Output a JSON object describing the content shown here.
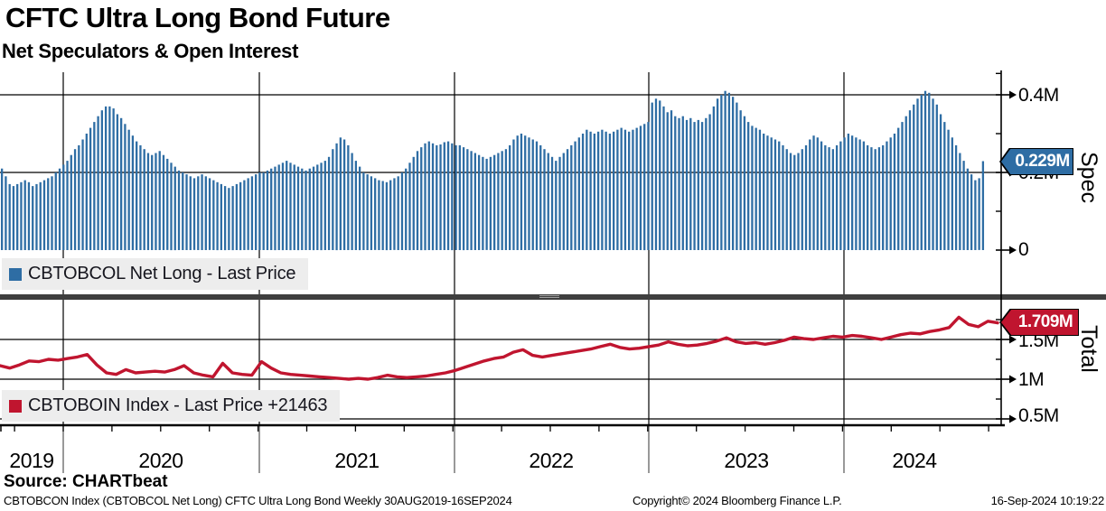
{
  "header": {
    "title": "CFTC Ultra Long Bond Future",
    "subtitle": "Net Speculators & Open Interest"
  },
  "top_panel": {
    "legend": "CBTOBCOL Net Long - Last Price",
    "axis_title": "Spec",
    "last_value_label": "0.229M",
    "series_color": "#2e6da4",
    "yticks": [
      {
        "label": "0.4M",
        "value": 0.4
      },
      {
        "label": "0.2M",
        "value": 0.2
      },
      {
        "label": "0",
        "value": 0
      }
    ],
    "minor_tick_values": [
      0.455,
      0.3,
      0.1
    ]
  },
  "bottom_panel": {
    "legend": "CBTOBOIN Index - Last Price +21463",
    "axis_title": "Total",
    "last_value_label": "1.709M",
    "series_color": "#c0152f",
    "yticks": [
      {
        "label": "1.5M",
        "value": 1.5
      },
      {
        "label": "1M",
        "value": 1.0
      },
      {
        "label": "0.5M",
        "value": 0.5
      }
    ],
    "minor_tick_values": [
      1.75,
      1.25,
      0.75
    ]
  },
  "x_axis": {
    "years": [
      "2019",
      "2020",
      "2021",
      "2022",
      "2023",
      "2024"
    ]
  },
  "footer": {
    "source": "Source: CHARTbeat",
    "left": "CBTOBCON Index (CBTOBCOL Net Long) CFTC Ultra Long Bond  Weekly 30AUG2019-16SEP2024",
    "center": "Copyright© 2024 Bloomberg Finance L.P.",
    "right": "16-Sep-2024 10:19:22"
  },
  "chart_data": [
    {
      "type": "bar",
      "name": "CBTOBCOL Net Long - Last Price",
      "title": "Net Speculators",
      "ylabel": "Spec",
      "x_range": [
        "30AUG2019",
        "16SEP2024"
      ],
      "frequency": "Weekly",
      "ylim": [
        0,
        0.46
      ],
      "grid": true,
      "unit": "M",
      "last_value": 0.229,
      "values": [
        0.21,
        0.19,
        0.17,
        0.165,
        0.17,
        0.175,
        0.18,
        0.175,
        0.165,
        0.17,
        0.175,
        0.18,
        0.185,
        0.19,
        0.2,
        0.21,
        0.22,
        0.23,
        0.245,
        0.26,
        0.27,
        0.285,
        0.3,
        0.315,
        0.33,
        0.345,
        0.36,
        0.37,
        0.37,
        0.365,
        0.35,
        0.34,
        0.325,
        0.31,
        0.295,
        0.28,
        0.27,
        0.26,
        0.25,
        0.245,
        0.25,
        0.255,
        0.245,
        0.235,
        0.225,
        0.215,
        0.205,
        0.2,
        0.195,
        0.19,
        0.185,
        0.19,
        0.195,
        0.19,
        0.185,
        0.18,
        0.175,
        0.17,
        0.165,
        0.16,
        0.165,
        0.17,
        0.175,
        0.18,
        0.185,
        0.19,
        0.195,
        0.2,
        0.2,
        0.205,
        0.21,
        0.215,
        0.22,
        0.225,
        0.23,
        0.225,
        0.22,
        0.215,
        0.21,
        0.205,
        0.21,
        0.215,
        0.22,
        0.225,
        0.23,
        0.24,
        0.26,
        0.275,
        0.29,
        0.285,
        0.27,
        0.25,
        0.23,
        0.215,
        0.2,
        0.195,
        0.19,
        0.185,
        0.18,
        0.178,
        0.175,
        0.18,
        0.185,
        0.19,
        0.2,
        0.21,
        0.225,
        0.24,
        0.255,
        0.265,
        0.275,
        0.28,
        0.275,
        0.27,
        0.272,
        0.278,
        0.28,
        0.275,
        0.27,
        0.27,
        0.265,
        0.26,
        0.255,
        0.25,
        0.245,
        0.24,
        0.235,
        0.24,
        0.245,
        0.25,
        0.255,
        0.26,
        0.27,
        0.285,
        0.295,
        0.3,
        0.295,
        0.29,
        0.285,
        0.28,
        0.27,
        0.26,
        0.25,
        0.24,
        0.23,
        0.24,
        0.25,
        0.26,
        0.27,
        0.28,
        0.29,
        0.3,
        0.31,
        0.305,
        0.3,
        0.305,
        0.31,
        0.305,
        0.3,
        0.305,
        0.31,
        0.315,
        0.31,
        0.305,
        0.31,
        0.315,
        0.32,
        0.325,
        0.33,
        0.38,
        0.39,
        0.385,
        0.37,
        0.355,
        0.36,
        0.345,
        0.34,
        0.345,
        0.335,
        0.34,
        0.33,
        0.335,
        0.33,
        0.34,
        0.35,
        0.37,
        0.39,
        0.4,
        0.41,
        0.405,
        0.395,
        0.38,
        0.36,
        0.345,
        0.33,
        0.32,
        0.315,
        0.31,
        0.3,
        0.295,
        0.29,
        0.285,
        0.28,
        0.27,
        0.26,
        0.25,
        0.245,
        0.25,
        0.26,
        0.27,
        0.285,
        0.295,
        0.29,
        0.28,
        0.27,
        0.265,
        0.26,
        0.27,
        0.28,
        0.29,
        0.3,
        0.295,
        0.29,
        0.285,
        0.28,
        0.27,
        0.265,
        0.26,
        0.265,
        0.27,
        0.28,
        0.29,
        0.3,
        0.315,
        0.33,
        0.345,
        0.36,
        0.375,
        0.39,
        0.4,
        0.41,
        0.405,
        0.39,
        0.375,
        0.35,
        0.33,
        0.31,
        0.29,
        0.27,
        0.25,
        0.23,
        0.21,
        0.195,
        0.18,
        0.185,
        0.229
      ]
    },
    {
      "type": "line",
      "name": "CBTOBOIN Index - Last Price",
      "title": "Open Interest",
      "ylabel": "Total",
      "x_range": [
        "30AUG2019",
        "16SEP2024"
      ],
      "frequency": "Weekly",
      "ylim": [
        0.43,
        2.0
      ],
      "grid": true,
      "unit": "M",
      "last_value": 1.709,
      "values": [
        1.17,
        1.14,
        1.18,
        1.23,
        1.22,
        1.25,
        1.24,
        1.26,
        1.28,
        1.31,
        1.18,
        1.08,
        1.06,
        1.12,
        1.08,
        1.09,
        1.1,
        1.09,
        1.12,
        1.17,
        1.08,
        1.05,
        1.03,
        1.2,
        1.08,
        1.06,
        1.05,
        1.22,
        1.14,
        1.08,
        1.06,
        1.05,
        1.04,
        1.03,
        1.02,
        1.01,
        1.0,
        1.01,
        1.0,
        1.02,
        1.05,
        1.03,
        1.02,
        1.03,
        1.04,
        1.06,
        1.08,
        1.11,
        1.15,
        1.19,
        1.23,
        1.26,
        1.28,
        1.34,
        1.37,
        1.3,
        1.28,
        1.3,
        1.32,
        1.34,
        1.36,
        1.38,
        1.41,
        1.44,
        1.4,
        1.38,
        1.39,
        1.41,
        1.43,
        1.47,
        1.44,
        1.42,
        1.43,
        1.45,
        1.48,
        1.52,
        1.47,
        1.45,
        1.46,
        1.44,
        1.46,
        1.49,
        1.53,
        1.51,
        1.5,
        1.52,
        1.54,
        1.53,
        1.55,
        1.54,
        1.52,
        1.5,
        1.53,
        1.56,
        1.58,
        1.57,
        1.6,
        1.62,
        1.65,
        1.78,
        1.69,
        1.66,
        1.73,
        1.709
      ]
    }
  ]
}
